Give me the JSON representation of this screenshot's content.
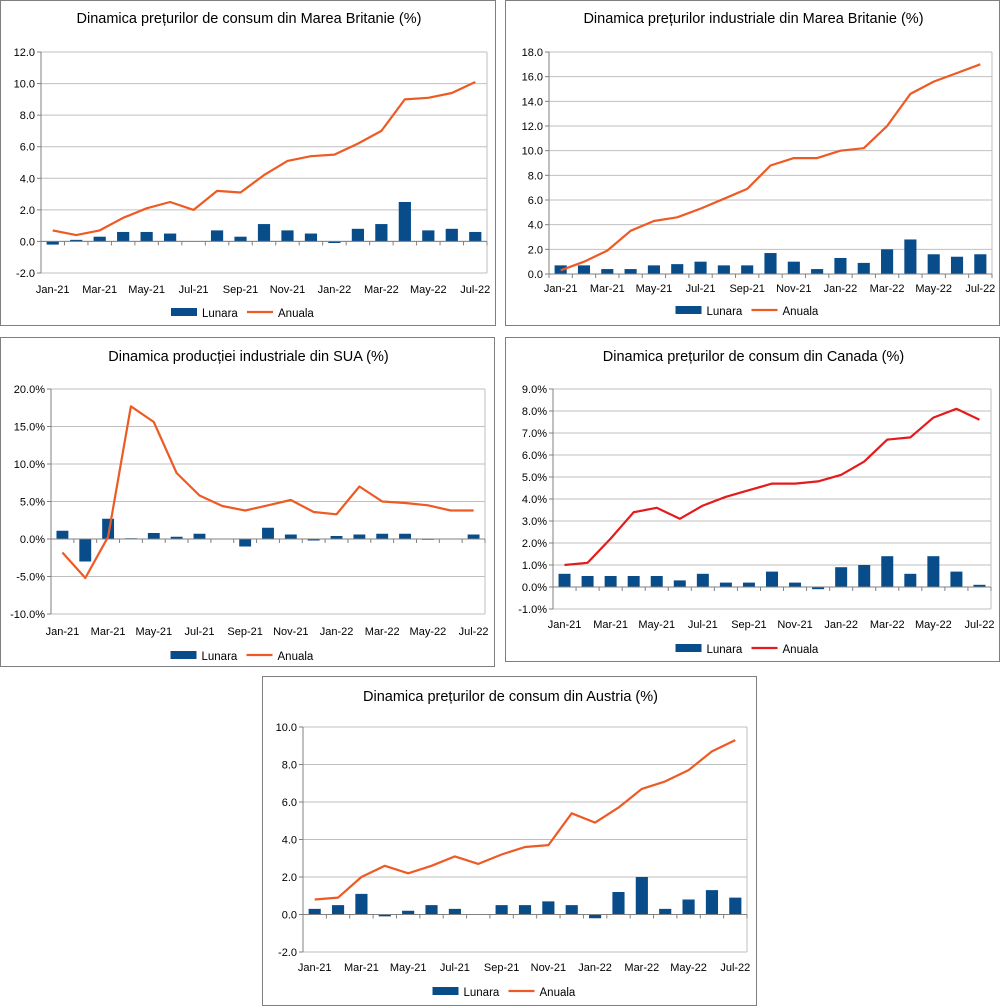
{
  "colors": {
    "bar": "#084d8a",
    "line": "#ee5a24",
    "line_canada": "#e41a1c",
    "grid": "#bfbfbf",
    "axis": "#808080"
  },
  "chart_data": [
    {
      "type": "bar+line",
      "title": "Dinamica prețurilor de consum din Marea Britanie (%)",
      "categories": [
        "Jan-21",
        "Feb-21",
        "Mar-21",
        "Apr-21",
        "May-21",
        "Jun-21",
        "Jul-21",
        "Aug-21",
        "Sep-21",
        "Oct-21",
        "Nov-21",
        "Dec-21",
        "Jan-22",
        "Feb-22",
        "Mar-22",
        "Apr-22",
        "May-22",
        "Jun-22",
        "Jul-22"
      ],
      "x_tick_labels": [
        "Jan-21",
        "Mar-21",
        "May-21",
        "Jul-21",
        "Sep-21",
        "Nov-21",
        "Jan-22",
        "Mar-22",
        "May-22",
        "Jul-22"
      ],
      "y_tick_labels": [
        "-2.0",
        "0.0",
        "2.0",
        "4.0",
        "6.0",
        "8.0",
        "10.0",
        "12.0"
      ],
      "ylim": [
        -2,
        12
      ],
      "series": [
        {
          "name": "Lunara",
          "kind": "bar",
          "values": [
            -0.2,
            0.1,
            0.3,
            0.6,
            0.6,
            0.5,
            0.0,
            0.7,
            0.3,
            1.1,
            0.7,
            0.5,
            -0.1,
            0.8,
            1.1,
            2.5,
            0.7,
            0.8,
            0.6
          ]
        },
        {
          "name": "Anuala",
          "kind": "line",
          "values": [
            0.7,
            0.4,
            0.7,
            1.5,
            2.1,
            2.5,
            2.0,
            3.2,
            3.1,
            4.2,
            5.1,
            5.4,
            5.5,
            6.2,
            7.0,
            9.0,
            9.1,
            9.4,
            10.1
          ]
        }
      ],
      "legend": [
        "Lunara",
        "Anuala"
      ],
      "legend_position": "bottom"
    },
    {
      "type": "bar+line",
      "title": "Dinamica prețurilor industriale din Marea Britanie (%)",
      "categories": [
        "Jan-21",
        "Feb-21",
        "Mar-21",
        "Apr-21",
        "May-21",
        "Jun-21",
        "Jul-21",
        "Aug-21",
        "Sep-21",
        "Oct-21",
        "Nov-21",
        "Dec-21",
        "Jan-22",
        "Feb-22",
        "Mar-22",
        "Apr-22",
        "May-22",
        "Jun-22",
        "Jul-22"
      ],
      "x_tick_labels": [
        "Jan-21",
        "Mar-21",
        "May-21",
        "Jul-21",
        "Sep-21",
        "Nov-21",
        "Jan-22",
        "Mar-22",
        "May-22",
        "Jul-22"
      ],
      "y_tick_labels": [
        "0.0",
        "2.0",
        "4.0",
        "6.0",
        "8.0",
        "10.0",
        "12.0",
        "14.0",
        "16.0",
        "18.0"
      ],
      "ylim": [
        0,
        18
      ],
      "series": [
        {
          "name": "Lunara",
          "kind": "bar",
          "values": [
            0.7,
            0.7,
            0.4,
            0.4,
            0.7,
            0.8,
            1.0,
            0.7,
            0.7,
            1.7,
            1.0,
            0.4,
            1.3,
            0.9,
            2.0,
            2.8,
            1.6,
            1.4,
            1.6
          ]
        },
        {
          "name": "Anuala",
          "kind": "line",
          "values": [
            0.3,
            1.0,
            1.9,
            3.5,
            4.3,
            4.6,
            5.3,
            6.1,
            6.9,
            8.8,
            9.4,
            9.4,
            10.0,
            10.2,
            12.0,
            14.6,
            15.6,
            16.3,
            17.0
          ]
        }
      ],
      "legend": [
        "Lunara",
        "Anuala"
      ],
      "legend_position": "bottom"
    },
    {
      "type": "bar+line",
      "title": "Dinamica producției industriale din SUA (%)",
      "categories": [
        "Jan-21",
        "Feb-21",
        "Mar-21",
        "Apr-21",
        "May-21",
        "Jun-21",
        "Jul-21",
        "Aug-21",
        "Sep-21",
        "Oct-21",
        "Nov-21",
        "Dec-21",
        "Jan-22",
        "Feb-22",
        "Mar-22",
        "Apr-22",
        "May-22",
        "Jun-22",
        "Jul-22"
      ],
      "x_tick_labels": [
        "Jan-21",
        "Mar-21",
        "May-21",
        "Jul-21",
        "Sep-21",
        "Nov-21",
        "Jan-22",
        "Mar-22",
        "May-22",
        "Jul-22"
      ],
      "y_tick_labels": [
        "-10.0%",
        "-5.0%",
        "0.0%",
        "5.0%",
        "10.0%",
        "15.0%",
        "20.0%"
      ],
      "ylim": [
        -10,
        20
      ],
      "series": [
        {
          "name": "Lunara",
          "kind": "bar",
          "values": [
            1.1,
            -3.0,
            2.7,
            0.1,
            0.8,
            0.3,
            0.7,
            0.0,
            -1.0,
            1.5,
            0.6,
            -0.2,
            0.4,
            0.6,
            0.7,
            0.7,
            -0.1,
            0.0,
            0.6
          ]
        },
        {
          "name": "Anuala",
          "kind": "line",
          "values": [
            -1.8,
            -5.2,
            0.3,
            17.7,
            15.6,
            8.8,
            5.8,
            4.4,
            3.8,
            4.5,
            5.2,
            3.6,
            3.3,
            7.0,
            5.0,
            4.8,
            4.5,
            3.8,
            3.8
          ]
        }
      ],
      "legend": [
        "Lunara",
        "Anuala"
      ],
      "legend_position": "bottom"
    },
    {
      "type": "bar+line",
      "title": "Dinamica prețurilor de consum din Canada (%)",
      "categories": [
        "Jan-21",
        "Feb-21",
        "Mar-21",
        "Apr-21",
        "May-21",
        "Jun-21",
        "Jul-21",
        "Aug-21",
        "Sep-21",
        "Oct-21",
        "Nov-21",
        "Dec-21",
        "Jan-22",
        "Feb-22",
        "Mar-22",
        "Apr-22",
        "May-22",
        "Jun-22",
        "Jul-22"
      ],
      "x_tick_labels": [
        "Jan-21",
        "Mar-21",
        "May-21",
        "Jul-21",
        "Sep-21",
        "Nov-21",
        "Jan-22",
        "Mar-22",
        "May-22",
        "Jul-22"
      ],
      "y_tick_labels": [
        "-1.0%",
        "0.0%",
        "1.0%",
        "2.0%",
        "3.0%",
        "4.0%",
        "5.0%",
        "6.0%",
        "7.0%",
        "8.0%",
        "9.0%"
      ],
      "ylim": [
        -1,
        9
      ],
      "series": [
        {
          "name": "Lunara",
          "kind": "bar",
          "values": [
            0.6,
            0.5,
            0.5,
            0.5,
            0.5,
            0.3,
            0.6,
            0.2,
            0.2,
            0.7,
            0.2,
            -0.1,
            0.9,
            1.0,
            1.4,
            0.6,
            1.4,
            0.7,
            0.1
          ]
        },
        {
          "name": "Anuala",
          "kind": "line",
          "values": [
            1.0,
            1.1,
            2.2,
            3.4,
            3.6,
            3.1,
            3.7,
            4.1,
            4.4,
            4.7,
            4.7,
            4.8,
            5.1,
            5.7,
            6.7,
            6.8,
            7.7,
            8.1,
            7.6
          ]
        }
      ],
      "legend": [
        "Lunara",
        "Anuala"
      ],
      "legend_position": "bottom"
    },
    {
      "type": "bar+line",
      "title": "Dinamica prețurilor de consum din Austria (%)",
      "categories": [
        "Jan-21",
        "Feb-21",
        "Mar-21",
        "Apr-21",
        "May-21",
        "Jun-21",
        "Jul-21",
        "Aug-21",
        "Sep-21",
        "Oct-21",
        "Nov-21",
        "Dec-21",
        "Jan-22",
        "Feb-22",
        "Mar-22",
        "Apr-22",
        "May-22",
        "Jun-22",
        "Jul-22"
      ],
      "x_tick_labels": [
        "Jan-21",
        "Mar-21",
        "May-21",
        "Jul-21",
        "Sep-21",
        "Nov-21",
        "Jan-22",
        "Mar-22",
        "May-22",
        "Jul-22"
      ],
      "y_tick_labels": [
        "-2.0",
        "0.0",
        "2.0",
        "4.0",
        "6.0",
        "8.0",
        "10.0"
      ],
      "ylim": [
        -2,
        10
      ],
      "series": [
        {
          "name": "Lunara",
          "kind": "bar",
          "values": [
            0.3,
            0.5,
            1.1,
            -0.1,
            0.2,
            0.5,
            0.3,
            0.0,
            0.5,
            0.5,
            0.7,
            0.5,
            -0.2,
            1.2,
            2.0,
            0.3,
            0.8,
            1.3,
            0.9
          ]
        },
        {
          "name": "Anuala",
          "kind": "line",
          "values": [
            0.8,
            0.9,
            2.0,
            2.6,
            2.2,
            2.6,
            3.1,
            2.7,
            3.2,
            3.6,
            3.7,
            5.4,
            4.9,
            5.7,
            6.7,
            7.1,
            7.7,
            8.7,
            9.3
          ]
        }
      ],
      "legend": [
        "Lunara",
        "Anuala"
      ],
      "legend_position": "bottom"
    }
  ]
}
